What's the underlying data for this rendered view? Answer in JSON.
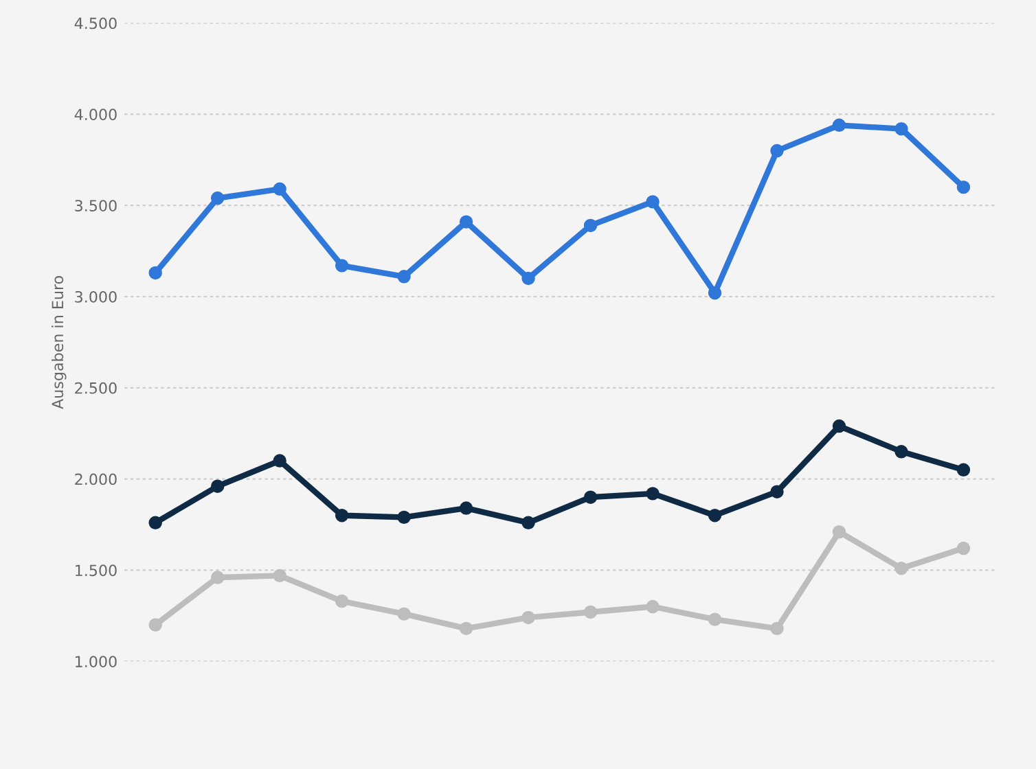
{
  "chart_data": {
    "type": "line",
    "ylabel": "Ausgaben in Euro",
    "categories": [
      null,
      null,
      null,
      null,
      null,
      null,
      null,
      null,
      null,
      null,
      null,
      null,
      null,
      null
    ],
    "series": [
      {
        "color": "#2f77d8",
        "values": [
          3130,
          3540,
          3590,
          3170,
          3110,
          3410,
          3100,
          3390,
          3520,
          3020,
          3800,
          3940,
          3920,
          3600
        ]
      },
      {
        "color": "#0f2a45",
        "values": [
          1760,
          1960,
          2100,
          1800,
          1790,
          1840,
          1760,
          1900,
          1920,
          1800,
          1930,
          2290,
          2150,
          2050
        ]
      },
      {
        "color": "#bdbdbd",
        "values": [
          1200,
          1460,
          1470,
          1330,
          1260,
          1180,
          1240,
          1270,
          1300,
          1230,
          1180,
          1710,
          1510,
          1620
        ]
      }
    ],
    "ylim": [
      1000,
      4500
    ],
    "yticks": [
      {
        "value": 1000,
        "label": "1.000"
      },
      {
        "value": 1500,
        "label": "1.500"
      },
      {
        "value": 2000,
        "label": "2.000"
      },
      {
        "value": 2500,
        "label": "2.500"
      },
      {
        "value": 3000,
        "label": "3.000"
      },
      {
        "value": 3500,
        "label": "3.500"
      },
      {
        "value": 4000,
        "label": "4.000"
      },
      {
        "value": 4500,
        "label": "4.500"
      }
    ],
    "grid": "y",
    "marker": "circle",
    "line_style": "solid",
    "legend": false
  }
}
